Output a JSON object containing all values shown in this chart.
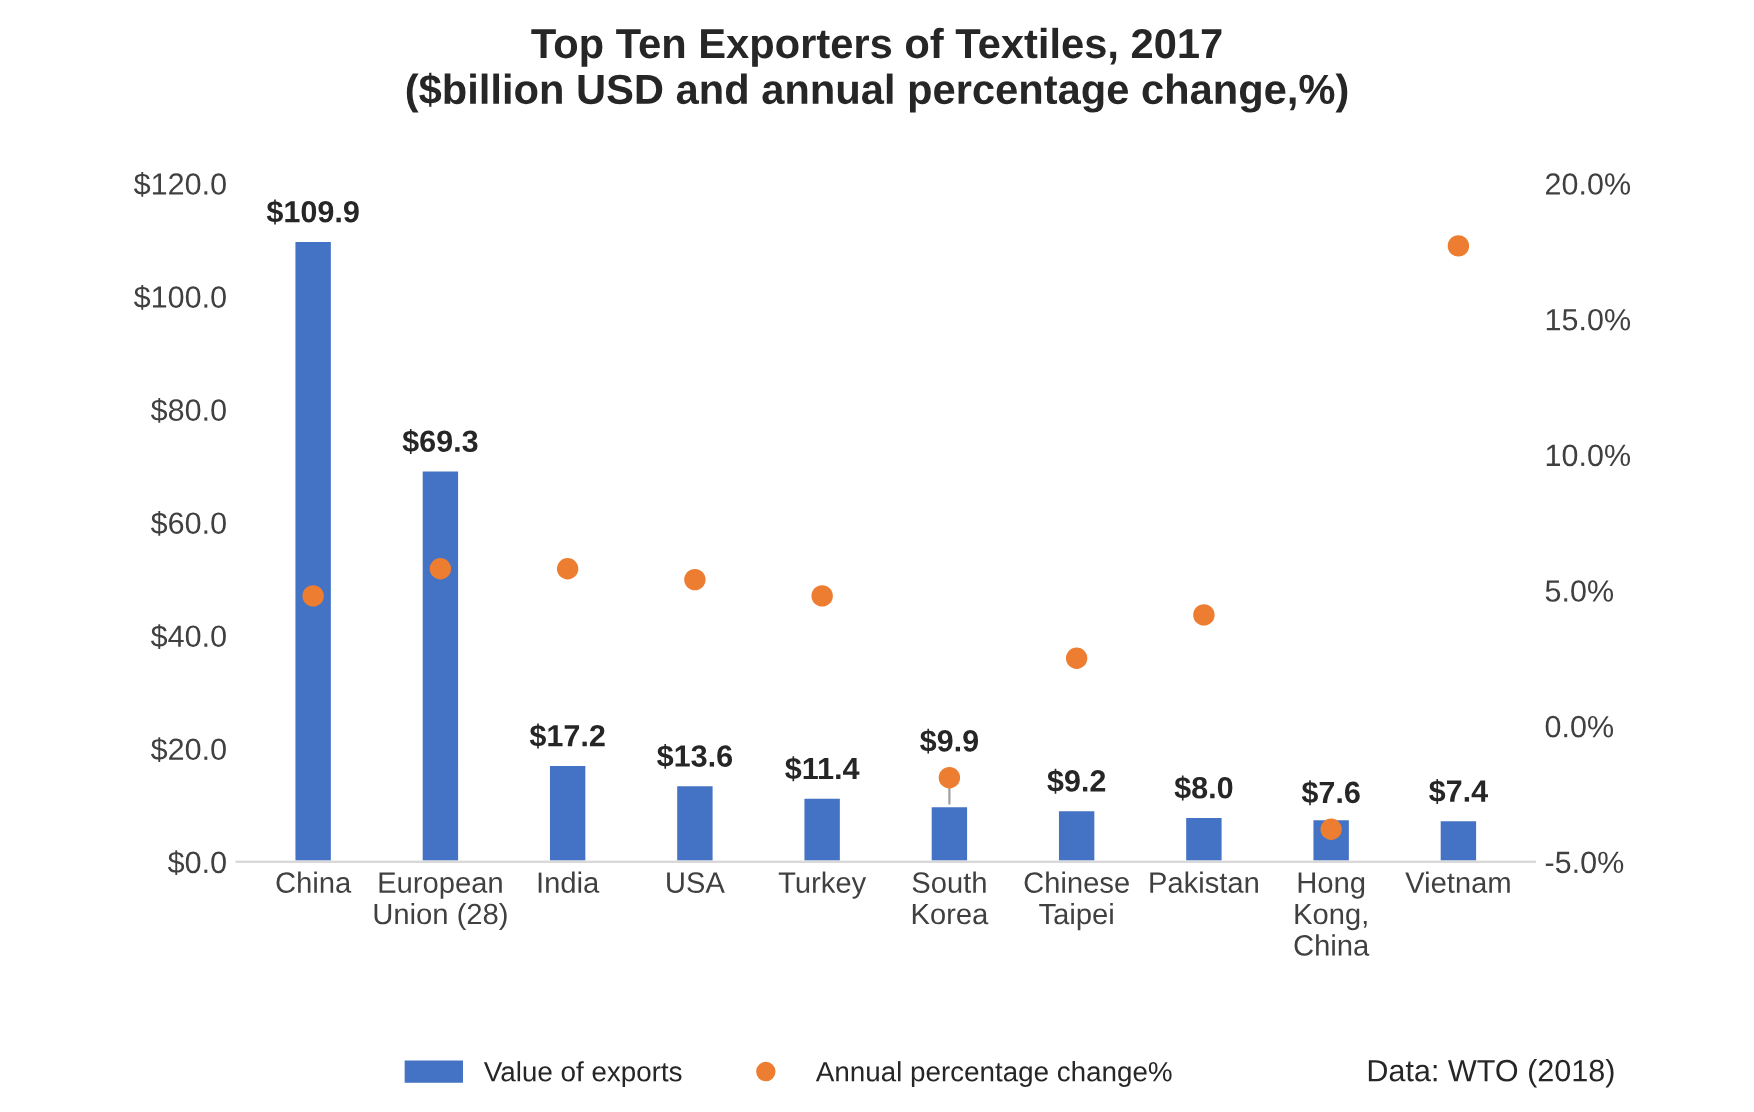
{
  "chart_data": {
    "type": "bar",
    "title": "Top Ten Exporters of Textiles, 2017\n($billion USD and annual percentage change,%)",
    "categories": [
      "China",
      "European\nUnion (28)",
      "India",
      "USA",
      "Turkey",
      "South\nKorea",
      "Chinese\nTaipei",
      "Pakistan",
      "Hong\nKong,\nChina",
      "Vietnam"
    ],
    "series": [
      {
        "name": "Value of exports",
        "color": "#4472c4",
        "values": [
          109.9,
          69.3,
          17.2,
          13.6,
          11.4,
          9.9,
          9.2,
          8.0,
          7.6,
          7.4
        ],
        "value_labels": [
          "$109.9",
          "$69.3",
          "$17.2",
          "$13.6",
          "$11.4",
          "$9.9",
          "$9.2",
          "$8.0",
          "$7.6",
          "$7.4"
        ]
      },
      {
        "name": "Annual percentage change%",
        "type": "scatter",
        "axis": "y2",
        "color": "#ed7d31",
        "values": [
          4.8,
          5.8,
          5.8,
          5.4,
          4.8,
          -1.9,
          2.5,
          4.1,
          -3.8,
          17.7
        ]
      }
    ],
    "ylim": [
      0,
      120
    ],
    "yticks": [
      {
        "value": 0,
        "label": "$0.0"
      },
      {
        "value": 20,
        "label": "$20.0"
      },
      {
        "value": 40,
        "label": "$40.0"
      },
      {
        "value": 60,
        "label": "$60.0"
      },
      {
        "value": 80,
        "label": "$80.0"
      },
      {
        "value": 100,
        "label": "$100.0"
      },
      {
        "value": 120,
        "label": "$120.0"
      }
    ],
    "y2lim": [
      -5,
      20
    ],
    "y2ticks": [
      {
        "value": -5,
        "label": "-5.0%"
      },
      {
        "value": 0,
        "label": "0.0%"
      },
      {
        "value": 5,
        "label": "5.0%"
      },
      {
        "value": 10,
        "label": "10.0%"
      },
      {
        "value": 15,
        "label": "15.0%"
      },
      {
        "value": 20,
        "label": "20.0%"
      }
    ],
    "legend": "bottom",
    "grid": false,
    "marker": "circle",
    "annotations": [
      "Data: WTO (2018)"
    ]
  }
}
